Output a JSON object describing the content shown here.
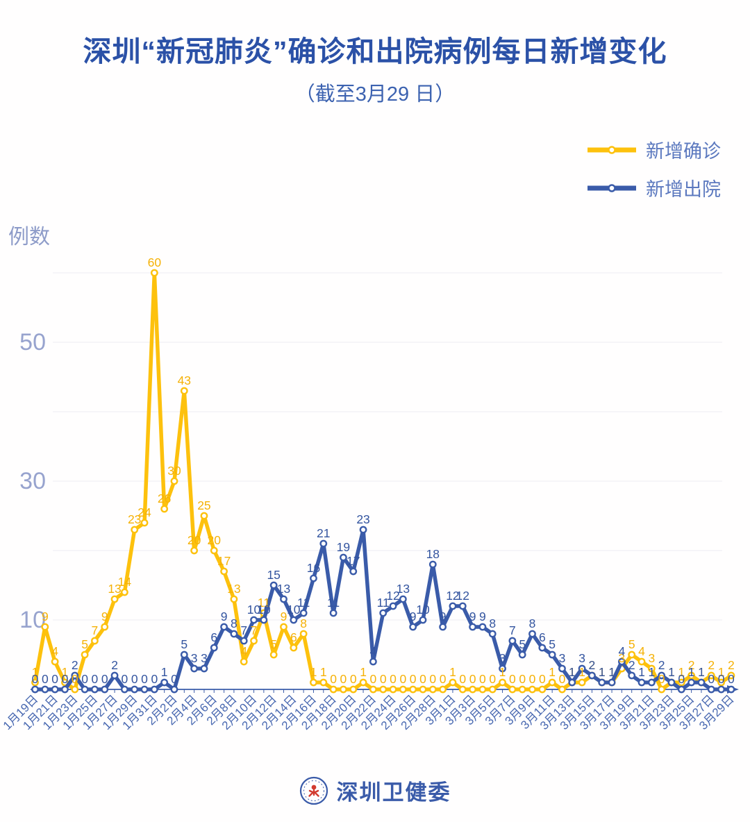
{
  "footer": {
    "org_name": "深圳卫健委"
  },
  "chart_data": {
    "type": "line",
    "title": "深圳“新冠肺炎”确诊和出院病例每日新增变化",
    "subtitle": "（截至3月29 日）",
    "ylabel": "例数",
    "ylim": [
      0,
      62
    ],
    "grid_step": 10,
    "ytick_labeled": [
      10,
      30,
      50
    ],
    "x_tick_every": 2,
    "legend_position": "top-right",
    "x_dates": [
      "1月19日",
      "1月20日",
      "1月21日",
      "1月22日",
      "1月23日",
      "1月24日",
      "1月25日",
      "1月26日",
      "1月27日",
      "1月28日",
      "1月29日",
      "1月30日",
      "1月31日",
      "2月1日",
      "2月2日",
      "2月3日",
      "2月4日",
      "2月5日",
      "2月6日",
      "2月7日",
      "2月8日",
      "2月9日",
      "2月10日",
      "2月11日",
      "2月12日",
      "2月13日",
      "2月14日",
      "2月15日",
      "2月16日",
      "2月17日",
      "2月18日",
      "2月19日",
      "2月20日",
      "2月21日",
      "2月22日",
      "2月23日",
      "2月24日",
      "2月25日",
      "2月26日",
      "2月27日",
      "2月28日",
      "2月29日",
      "3月1日",
      "3月2日",
      "3月3日",
      "3月4日",
      "3月5日",
      "3月6日",
      "3月7日",
      "3月8日",
      "3月9日",
      "3月10日",
      "3月11日",
      "3月12日",
      "3月13日",
      "3月14日",
      "3月15日",
      "3月16日",
      "3月17日",
      "3月18日",
      "3月19日",
      "3月20日",
      "3月21日",
      "3月22日",
      "3月23日",
      "3月24日",
      "3月25日",
      "3月26日",
      "3月27日",
      "3月28日",
      "3月29日"
    ],
    "series": [
      {
        "name": "新增确诊",
        "color": "#fdc10d",
        "label_color": "#f5b106",
        "values": [
          1,
          9,
          4,
          1,
          0,
          5,
          7,
          9,
          13,
          14,
          23,
          24,
          60,
          26,
          30,
          43,
          20,
          25,
          20,
          17,
          13,
          4,
          7,
          11,
          5,
          9,
          6,
          8,
          1,
          1,
          0,
          0,
          0,
          1,
          0,
          0,
          0,
          0,
          0,
          0,
          0,
          0,
          1,
          0,
          0,
          0,
          0,
          1,
          0,
          0,
          0,
          0,
          1,
          0,
          1,
          1,
          2,
          1,
          1,
          3,
          5,
          4,
          3,
          0,
          1,
          1,
          2,
          1,
          2,
          1,
          2
        ]
      },
      {
        "name": "新增出院",
        "color": "#3a5ba9",
        "label_color": "#33549f",
        "values": [
          0,
          0,
          0,
          0,
          2,
          0,
          0,
          0,
          2,
          0,
          0,
          0,
          0,
          1,
          0,
          5,
          3,
          3,
          6,
          9,
          8,
          7,
          10,
          10,
          15,
          13,
          10,
          11,
          16,
          21,
          11,
          19,
          17,
          23,
          4,
          11,
          12,
          13,
          9,
          10,
          18,
          9,
          12,
          12,
          9,
          9,
          8,
          3,
          7,
          5,
          8,
          6,
          5,
          3,
          1,
          3,
          2,
          1,
          1,
          4,
          2,
          1,
          1,
          2,
          1,
          0,
          1,
          1,
          0,
          0,
          0
        ]
      }
    ],
    "axis_color": "#3a5ba9",
    "grid_color": "#ececf2",
    "ytick_color": "#97a3ce",
    "xtick_color": "#4767b0"
  }
}
